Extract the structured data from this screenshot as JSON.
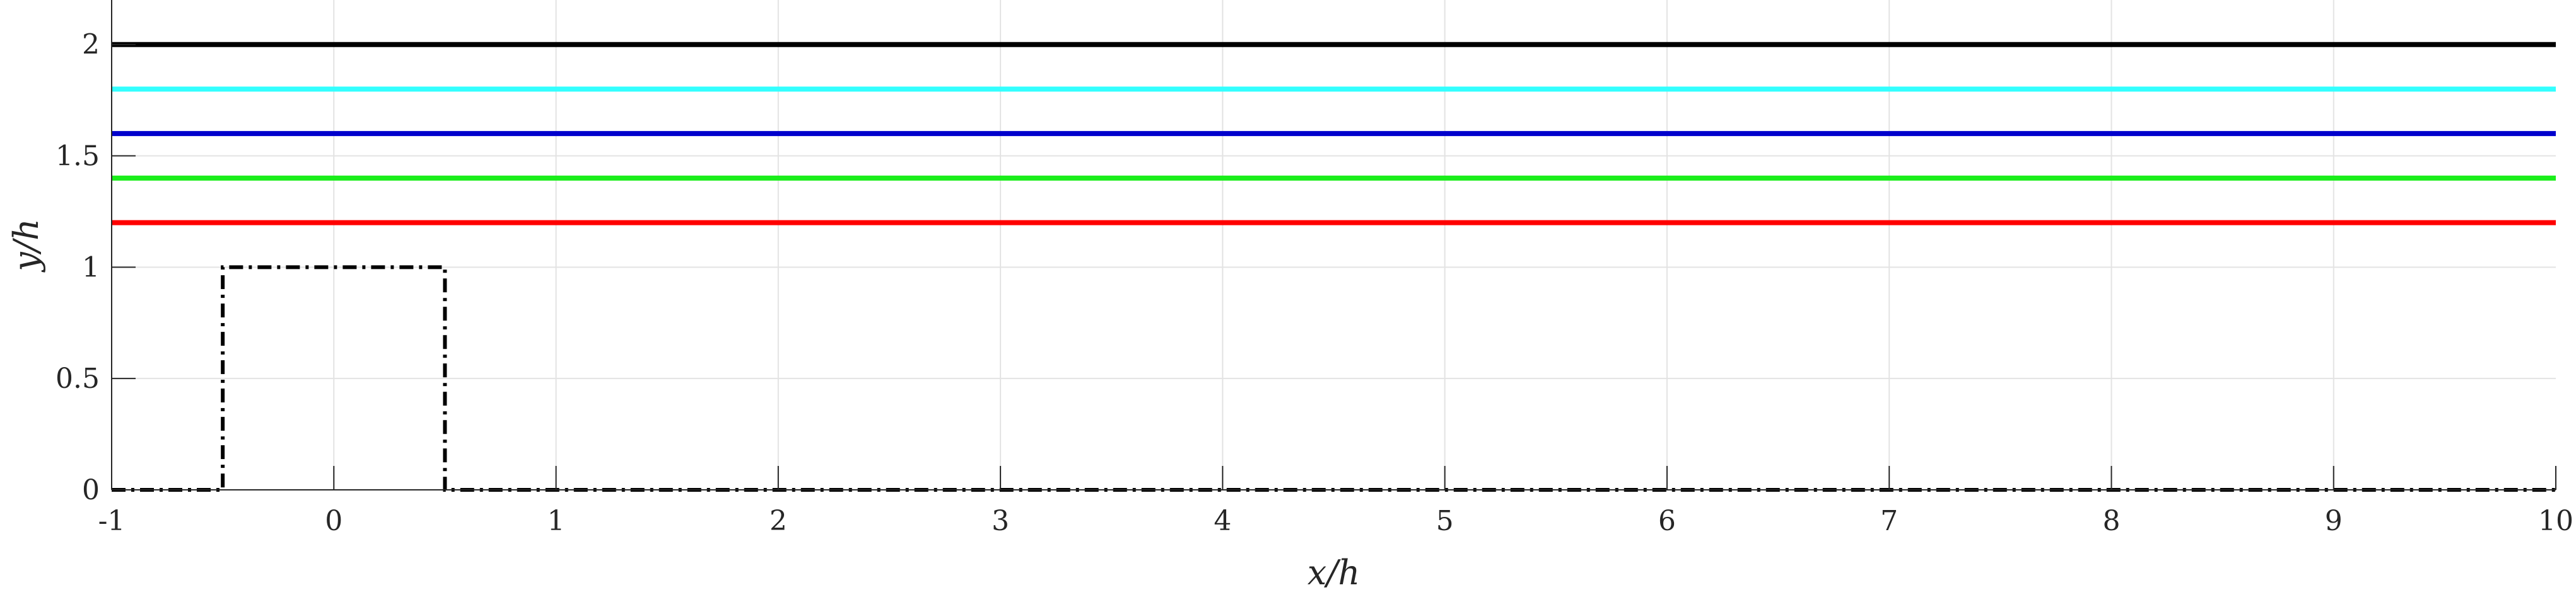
{
  "chart_data": {
    "type": "line",
    "xlabel": "x/h",
    "ylabel": "y/h",
    "xlim": [
      -1,
      10
    ],
    "ylim": [
      0,
      2.2
    ],
    "grid": true,
    "xticks": [
      -1,
      0,
      1,
      2,
      3,
      4,
      5,
      6,
      7,
      8,
      9,
      10
    ],
    "xtick_labels": [
      "-1",
      "0",
      "1",
      "2",
      "3",
      "4",
      "5",
      "6",
      "7",
      "8",
      "9",
      "10"
    ],
    "yticks": [
      0,
      0.5,
      1,
      1.5,
      2
    ],
    "ytick_labels": [
      "0",
      "0.5",
      "1",
      "1.5",
      "2"
    ],
    "series": [
      {
        "color": "#000000",
        "style": "solid",
        "x": [
          -1,
          10
        ],
        "y": [
          2,
          2
        ]
      },
      {
        "color": "#33ffff",
        "style": "solid",
        "x": [
          -1,
          10
        ],
        "y": [
          1.8,
          1.8
        ]
      },
      {
        "color": "#0000cc",
        "style": "solid",
        "x": [
          -1,
          10
        ],
        "y": [
          1.6,
          1.6
        ]
      },
      {
        "color": "#1aee1a",
        "style": "solid",
        "x": [
          -1,
          10
        ],
        "y": [
          1.4,
          1.4
        ]
      },
      {
        "color": "#ff0000",
        "style": "solid",
        "x": [
          -1,
          10
        ],
        "y": [
          1.2,
          1.2
        ]
      },
      {
        "color": "#000000",
        "style": "dashdot",
        "x": [
          -1,
          -0.5,
          -0.5,
          0.5,
          0.5,
          10
        ],
        "y": [
          0,
          0,
          1,
          1,
          0,
          0
        ]
      }
    ]
  }
}
